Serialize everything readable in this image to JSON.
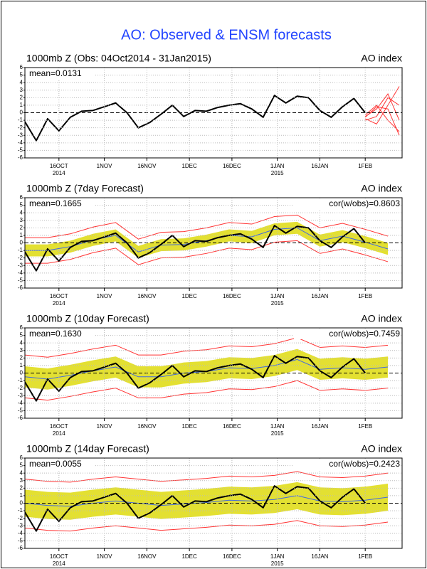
{
  "title": "AO: Observed & ENSM forecasts",
  "chart_data": [
    {
      "type": "line",
      "title": "1000mb Z (Obs: 04Oct2014 - 31Jan2015)",
      "right_title": "AO index",
      "mean_label": "mean=0.0131",
      "xlim": [
        0,
        133
      ],
      "ylim": [
        -6,
        6
      ],
      "yticks": [
        -6,
        -5,
        -4,
        -3,
        -2,
        -1,
        0,
        1,
        2,
        3,
        4,
        5,
        6
      ],
      "xticks": [
        {
          "value": 12,
          "label": "16OCT"
        },
        {
          "value": 28,
          "label": "1NOV"
        },
        {
          "value": 43,
          "label": "16NOV"
        },
        {
          "value": 58,
          "label": "1DEC"
        },
        {
          "value": 73,
          "label": "16DEC"
        },
        {
          "value": 89,
          "label": "1JAN"
        },
        {
          "value": 104,
          "label": "16JAN"
        },
        {
          "value": 120,
          "label": "1FEB"
        }
      ],
      "x_year_labels": [
        {
          "value": 12,
          "label": "2014"
        },
        {
          "value": 89,
          "label": "2015"
        }
      ],
      "grid": true,
      "observed": {
        "color": "#000000",
        "x": [
          0,
          4,
          8,
          12,
          16,
          20,
          24,
          28,
          32,
          36,
          40,
          44,
          48,
          52,
          56,
          60,
          64,
          68,
          72,
          76,
          80,
          84,
          88,
          92,
          96,
          100,
          104,
          108,
          112,
          116,
          120
        ],
        "values": [
          -1.2,
          -3.7,
          -0.8,
          -2.4,
          -0.6,
          0.2,
          0.3,
          0.8,
          1.3,
          0.0,
          -2.0,
          -1.3,
          -0.2,
          1.0,
          -0.5,
          0.3,
          0.2,
          0.7,
          1.0,
          1.2,
          0.5,
          -0.6,
          2.3,
          1.3,
          2.2,
          2.0,
          0.3,
          -0.6,
          0.8,
          1.9,
          0.0
        ]
      },
      "members": {
        "color": "#ff3333",
        "x": [
          120,
          124,
          128,
          132
        ],
        "series": [
          [
            -0.5,
            0.5,
            2.5,
            -1.0
          ],
          [
            -0.8,
            -1.5,
            1.0,
            3.5
          ],
          [
            -0.3,
            1.0,
            -1.0,
            -2.5
          ],
          [
            -1.0,
            -0.5,
            2.0,
            1.0
          ],
          [
            -0.6,
            0.8,
            0.5,
            -3.0
          ]
        ]
      }
    },
    {
      "type": "line",
      "title": "1000mb Z (7day Forecast)",
      "right_title": "AO index",
      "mean_label": "mean=0.1665",
      "cor_label": "cor(w/obs)=0.8603",
      "xlim": [
        0,
        133
      ],
      "ylim": [
        -6,
        6
      ],
      "yticks": [
        -6,
        -5,
        -4,
        -3,
        -2,
        -1,
        0,
        1,
        2,
        3,
        4,
        5,
        6
      ],
      "xticks": [
        {
          "value": 12,
          "label": "16OCT"
        },
        {
          "value": 28,
          "label": "1NOV"
        },
        {
          "value": 43,
          "label": "16NOV"
        },
        {
          "value": 58,
          "label": "1DEC"
        },
        {
          "value": 73,
          "label": "16DEC"
        },
        {
          "value": 89,
          "label": "1JAN"
        },
        {
          "value": 104,
          "label": "16JAN"
        },
        {
          "value": 120,
          "label": "1FEB"
        }
      ],
      "x_year_labels": [
        {
          "value": 12,
          "label": "2014"
        },
        {
          "value": 89,
          "label": "2015"
        }
      ],
      "grid": true,
      "forecast": {
        "x": [
          0,
          8,
          16,
          24,
          32,
          40,
          48,
          56,
          64,
          72,
          80,
          88,
          96,
          104,
          112,
          120,
          128
        ],
        "band_color": "#e3e032",
        "range_color": "#ff3333",
        "mean_color": "#4169e1",
        "mean": [
          -1.0,
          -1.0,
          -0.5,
          0.4,
          1.0,
          -1.2,
          -0.3,
          -0.2,
          0.3,
          1.0,
          0.8,
          1.8,
          2.0,
          0.3,
          0.9,
          0.1,
          -0.8
        ],
        "band_lower": [
          -1.8,
          -1.8,
          -1.3,
          -0.4,
          0.2,
          -2.0,
          -1.1,
          -1.0,
          -0.5,
          0.2,
          0.0,
          1.0,
          1.2,
          -0.5,
          0.1,
          -0.7,
          -1.6
        ],
        "band_upper": [
          -0.2,
          -0.2,
          0.3,
          1.2,
          1.8,
          -0.4,
          0.5,
          0.6,
          1.1,
          1.8,
          1.6,
          2.6,
          2.8,
          1.1,
          1.7,
          0.9,
          0.0
        ],
        "min": [
          -2.7,
          -2.7,
          -2.2,
          -1.3,
          -0.7,
          -2.9,
          -2.0,
          -1.9,
          -1.4,
          -0.7,
          -0.9,
          0.1,
          0.3,
          -1.4,
          -0.8,
          -1.6,
          -2.5
        ],
        "max": [
          0.7,
          0.7,
          1.2,
          2.1,
          2.7,
          0.5,
          1.4,
          1.5,
          2.0,
          2.7,
          2.5,
          3.5,
          3.7,
          2.0,
          2.6,
          1.8,
          0.9
        ]
      },
      "observed": {
        "color": "#000000",
        "x": [
          0,
          4,
          8,
          12,
          16,
          20,
          24,
          28,
          32,
          36,
          40,
          44,
          48,
          52,
          56,
          60,
          64,
          68,
          72,
          76,
          80,
          84,
          88,
          92,
          96,
          100,
          104,
          108,
          112,
          116,
          120
        ],
        "values": [
          -1.2,
          -3.7,
          -0.8,
          -2.4,
          -0.6,
          0.2,
          0.3,
          0.8,
          1.3,
          0.0,
          -2.0,
          -1.3,
          -0.2,
          1.0,
          -0.5,
          0.3,
          0.2,
          0.7,
          1.0,
          1.2,
          0.5,
          -0.6,
          2.3,
          1.3,
          2.2,
          2.0,
          0.3,
          -0.6,
          0.8,
          1.9,
          0.0
        ]
      }
    },
    {
      "type": "line",
      "title": "1000mb Z (10day Forecast)",
      "right_title": "AO index",
      "mean_label": "mean=0.1630",
      "cor_label": "cor(w/obs)=0.7459",
      "xlim": [
        0,
        133
      ],
      "ylim": [
        -6,
        6
      ],
      "yticks": [
        -6,
        -5,
        -4,
        -3,
        -2,
        -1,
        0,
        1,
        2,
        3,
        4,
        5,
        6
      ],
      "xticks": [
        {
          "value": 12,
          "label": "16OCT"
        },
        {
          "value": 28,
          "label": "1NOV"
        },
        {
          "value": 43,
          "label": "16NOV"
        },
        {
          "value": 58,
          "label": "1DEC"
        },
        {
          "value": 73,
          "label": "16DEC"
        },
        {
          "value": 89,
          "label": "1JAN"
        },
        {
          "value": 104,
          "label": "16JAN"
        },
        {
          "value": 120,
          "label": "1FEB"
        }
      ],
      "x_year_labels": [
        {
          "value": 12,
          "label": "2014"
        },
        {
          "value": 89,
          "label": "2015"
        }
      ],
      "grid": true,
      "forecast": {
        "x": [
          0,
          8,
          16,
          24,
          32,
          40,
          48,
          56,
          64,
          72,
          80,
          88,
          96,
          104,
          112,
          120,
          128
        ],
        "band_color": "#e3e032",
        "range_color": "#ff3333",
        "mean_color": "#4169e1",
        "mean": [
          -0.5,
          -0.8,
          -0.3,
          0.3,
          0.8,
          -0.5,
          -0.5,
          0.0,
          0.2,
          0.7,
          0.6,
          1.0,
          1.8,
          0.5,
          0.7,
          0.5,
          0.8
        ],
        "band_lower": [
          -1.9,
          -2.2,
          -1.7,
          -1.1,
          -0.6,
          -1.9,
          -1.9,
          -1.4,
          -1.2,
          -0.7,
          -0.8,
          -0.4,
          0.4,
          -0.9,
          -0.7,
          -0.9,
          -0.6
        ],
        "band_upper": [
          0.9,
          0.6,
          1.1,
          1.7,
          2.2,
          0.9,
          0.9,
          1.4,
          1.6,
          2.1,
          2.0,
          2.4,
          3.2,
          1.9,
          2.1,
          1.9,
          2.2
        ],
        "min": [
          -3.3,
          -3.6,
          -3.1,
          -2.5,
          -2.0,
          -3.3,
          -3.3,
          -2.8,
          -2.6,
          -2.1,
          -2.2,
          -1.8,
          -1.0,
          -2.3,
          -2.1,
          -2.3,
          -2.0
        ],
        "max": [
          2.4,
          2.1,
          2.6,
          3.2,
          3.7,
          2.4,
          2.4,
          2.9,
          3.1,
          3.6,
          3.5,
          3.9,
          4.7,
          3.4,
          3.6,
          3.4,
          3.7
        ]
      },
      "observed": {
        "color": "#000000",
        "x": [
          0,
          4,
          8,
          12,
          16,
          20,
          24,
          28,
          32,
          36,
          40,
          44,
          48,
          52,
          56,
          60,
          64,
          68,
          72,
          76,
          80,
          84,
          88,
          92,
          96,
          100,
          104,
          108,
          112,
          116,
          120
        ],
        "values": [
          -1.2,
          -3.7,
          -0.8,
          -2.4,
          -0.6,
          0.2,
          0.3,
          0.8,
          1.3,
          0.0,
          -2.0,
          -1.3,
          -0.2,
          1.0,
          -0.5,
          0.3,
          0.2,
          0.7,
          1.0,
          1.2,
          0.5,
          -0.6,
          2.3,
          1.3,
          2.2,
          2.0,
          0.3,
          -0.6,
          0.8,
          1.9,
          0.0
        ]
      }
    },
    {
      "type": "line",
      "title": "1000mb Z (14day Forecast)",
      "right_title": "AO index",
      "mean_label": "mean=0.0055",
      "cor_label": "cor(w/obs)=0.2423",
      "xlim": [
        0,
        133
      ],
      "ylim": [
        -6,
        6
      ],
      "yticks": [
        -6,
        -5,
        -4,
        -3,
        -2,
        -1,
        0,
        1,
        2,
        3,
        4,
        5,
        6
      ],
      "xticks": [
        {
          "value": 12,
          "label": "16OCT"
        },
        {
          "value": 28,
          "label": "1NOV"
        },
        {
          "value": 43,
          "label": "16NOV"
        },
        {
          "value": 58,
          "label": "1DEC"
        },
        {
          "value": 73,
          "label": "16DEC"
        },
        {
          "value": 89,
          "label": "1JAN"
        },
        {
          "value": 104,
          "label": "16JAN"
        },
        {
          "value": 120,
          "label": "1FEB"
        }
      ],
      "x_year_labels": [
        {
          "value": 12,
          "label": "2014"
        },
        {
          "value": 89,
          "label": "2015"
        }
      ],
      "grid": true,
      "forecast": {
        "x": [
          0,
          8,
          16,
          24,
          32,
          40,
          48,
          56,
          64,
          72,
          80,
          88,
          96,
          104,
          112,
          120,
          128
        ],
        "band_color": "#e3e032",
        "range_color": "#ff3333",
        "mean_color": "#4169e1",
        "mean": [
          0.0,
          -0.3,
          -0.4,
          0.0,
          0.3,
          0.0,
          -0.3,
          -0.1,
          0.1,
          0.4,
          0.3,
          0.5,
          1.0,
          0.3,
          0.2,
          0.4,
          0.8
        ],
        "band_lower": [
          -1.8,
          -2.1,
          -2.2,
          -1.8,
          -1.5,
          -1.8,
          -2.1,
          -1.9,
          -1.7,
          -1.4,
          -1.5,
          -1.3,
          -0.8,
          -1.5,
          -1.6,
          -1.4,
          -1.0
        ],
        "band_upper": [
          1.8,
          1.5,
          1.4,
          1.8,
          2.1,
          1.8,
          1.5,
          1.7,
          1.9,
          2.2,
          2.1,
          2.3,
          2.8,
          2.1,
          2.0,
          2.2,
          2.6
        ],
        "min": [
          -3.3,
          -3.6,
          -3.7,
          -3.3,
          -3.0,
          -3.3,
          -3.6,
          -3.4,
          -3.2,
          -2.9,
          -3.0,
          -2.8,
          -2.3,
          -3.0,
          -3.1,
          -2.9,
          -2.5
        ],
        "max": [
          3.2,
          2.9,
          2.8,
          3.2,
          3.5,
          3.2,
          2.9,
          3.1,
          3.3,
          3.6,
          3.5,
          3.7,
          4.2,
          3.5,
          3.4,
          3.6,
          4.0
        ]
      },
      "observed": {
        "color": "#000000",
        "x": [
          0,
          4,
          8,
          12,
          16,
          20,
          24,
          28,
          32,
          36,
          40,
          44,
          48,
          52,
          56,
          60,
          64,
          68,
          72,
          76,
          80,
          84,
          88,
          92,
          96,
          100,
          104,
          108,
          112,
          116,
          120
        ],
        "values": [
          -1.2,
          -3.7,
          -0.8,
          -2.4,
          -0.6,
          0.2,
          0.3,
          0.8,
          1.3,
          0.0,
          -2.0,
          -1.3,
          -0.2,
          1.0,
          -0.5,
          0.3,
          0.2,
          0.7,
          1.0,
          1.2,
          0.5,
          -0.6,
          2.3,
          1.3,
          2.2,
          2.0,
          0.3,
          -0.6,
          0.8,
          1.9,
          0.0
        ]
      }
    }
  ]
}
